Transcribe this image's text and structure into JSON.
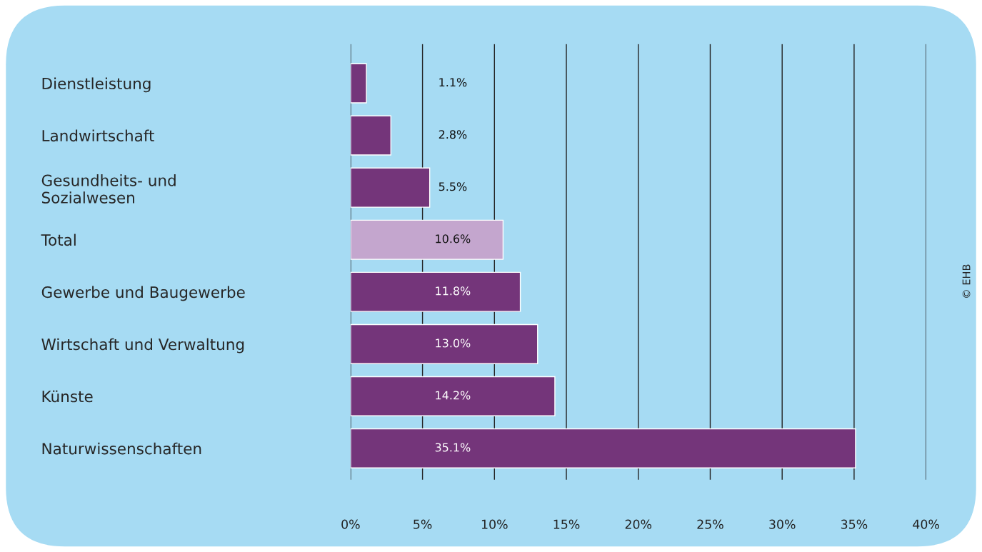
{
  "chart_data": {
    "type": "bar",
    "orientation": "horizontal",
    "categories": [
      "Dienstleistung",
      "Landwirtschaft",
      "Gesundheits- und\nSozialwesen",
      "Total",
      "Gewerbe und Baugewerbe",
      "Wirtschaft und Verwaltung",
      "Künste",
      "Naturwissenschaften"
    ],
    "values": [
      1.1,
      2.8,
      5.5,
      10.6,
      11.8,
      13.0,
      14.2,
      35.1
    ],
    "colors": [
      "#74357a",
      "#74357a",
      "#74357a",
      "#c4a6ce",
      "#74357a",
      "#74357a",
      "#74357a",
      "#74357a"
    ],
    "value_labels": [
      "1.1%",
      "2.8%",
      "5.5%",
      "10.6%",
      "11.8%",
      "13.0%",
      "14.2%",
      "35.1%"
    ],
    "xlim": [
      0,
      40
    ],
    "xticks": [
      {
        "value": 0,
        "label": "0%"
      },
      {
        "value": 5,
        "label": "5%"
      },
      {
        "value": 10,
        "label": "10%"
      },
      {
        "value": 15,
        "label": "15%"
      },
      {
        "value": 20,
        "label": "20%"
      },
      {
        "value": 25,
        "label": "25%"
      },
      {
        "value": 30,
        "label": "30%"
      },
      {
        "value": 35,
        "label": "35%"
      },
      {
        "value": 40,
        "label": "40%"
      }
    ],
    "grid": "x",
    "annotations": [
      "© EHB"
    ]
  }
}
